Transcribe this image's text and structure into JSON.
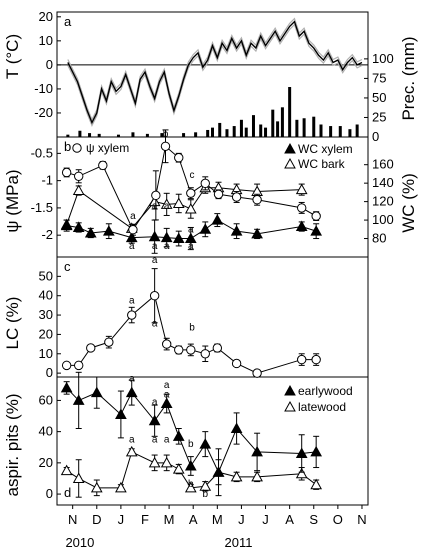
{
  "chart_data": [
    {
      "panel": "a",
      "type": "line",
      "ylabel": "T (°C)",
      "ylabel_right": "Prec. (mm)",
      "ylim": [
        -30,
        22
      ],
      "ylim_right": [
        0,
        160
      ],
      "yticks": [
        -20,
        -10,
        0,
        10,
        20
      ],
      "yticks_right": [
        0,
        25,
        50,
        75,
        100
      ],
      "zero_line": true,
      "series": [
        {
          "type": "line",
          "x": [
            0.3,
            0.5,
            0.7,
            0.9,
            1.1,
            1.3,
            1.5,
            1.7,
            1.9,
            2.1,
            2.3,
            2.5,
            2.7,
            2.9,
            3.1,
            3.3,
            3.5,
            3.7,
            3.9,
            4.1,
            4.3,
            4.5,
            4.7,
            4.9,
            5.1,
            5.3,
            5.5,
            5.7,
            5.9,
            6.1,
            6.3,
            6.5,
            6.7,
            6.9,
            7.1,
            7.3,
            7.5,
            7.7,
            7.9,
            8.1,
            8.3,
            8.5,
            8.7,
            8.9,
            9.1,
            9.3,
            9.5,
            9.7,
            9.9,
            10.1,
            10.3,
            10.5,
            10.7,
            10.9,
            11.1,
            11.3,
            11.5,
            11.7,
            11.9,
            12.1,
            12.3,
            12.5
          ],
          "y": [
            1,
            -3,
            -7,
            -13,
            -19,
            -24,
            -20,
            -10,
            -15,
            -7,
            -11,
            -9,
            -4,
            -10,
            -16,
            -6,
            -3,
            -9,
            -14,
            -7,
            -3,
            -12,
            -19,
            -13,
            -6,
            0,
            3,
            5,
            -1,
            2,
            8,
            3,
            9,
            6,
            11,
            7,
            10,
            4,
            9,
            7,
            12,
            8,
            11,
            14,
            10,
            13,
            16,
            18,
            12,
            14,
            9,
            7,
            4,
            2,
            5,
            1,
            2,
            -2,
            1,
            3,
            0,
            1
          ]
        },
        {
          "type": "bar",
          "name": "Prec.",
          "x": [
            0.3,
            0.8,
            1.2,
            1.6,
            2.4,
            3.0,
            3.6,
            4.2,
            5.1,
            5.6,
            6.1,
            6.3,
            6.6,
            6.9,
            7.2,
            7.5,
            7.7,
            8.0,
            8.3,
            8.5,
            8.8,
            9.0,
            9.2,
            9.5,
            9.8,
            10.1,
            10.5,
            10.8,
            11.2,
            11.6,
            12.0,
            12.3
          ],
          "y": [
            3,
            8,
            5,
            4,
            3,
            6,
            4,
            5,
            5,
            6,
            9,
            12,
            18,
            10,
            14,
            22,
            12,
            28,
            16,
            12,
            35,
            20,
            38,
            64,
            22,
            24,
            26,
            16,
            14,
            14,
            10,
            16
          ]
        }
      ]
    },
    {
      "panel": "b",
      "type": "line",
      "ylabel": "ψ (MPa)",
      "ylabel_right": "WC (%)",
      "ylim": [
        -2.4,
        -0.2
      ],
      "ylim_right": [
        60,
        190
      ],
      "yticks": [
        -2,
        -1.5,
        -1,
        -0.5
      ],
      "yticks_right": [
        80,
        100,
        120,
        140,
        160
      ],
      "legend": [
        "ψ xylem",
        "WC xylem",
        "WC bark"
      ],
      "series": [
        {
          "name": "ψ xylem",
          "x": [
            0.25,
            0.75,
            1.75,
            3,
            3.95,
            4.35,
            4.9,
            5.4,
            6,
            6.55,
            7.3,
            8.15,
            10,
            10.6
          ],
          "y": [
            -0.85,
            -0.92,
            -0.72,
            -1.9,
            -1.27,
            -0.37,
            -0.58,
            -1.23,
            -1.05,
            -1.25,
            -1.3,
            -1.35,
            -1.5,
            -1.65
          ],
          "err": [
            0.08,
            0.12,
            0.07,
            0.1,
            0.45,
            0.3,
            0.08,
            0.1,
            0.12,
            0.08,
            0.1,
            0.1,
            0.1,
            0.08
          ]
        },
        {
          "name": "WC xylem",
          "x": [
            0.25,
            0.75,
            1.25,
            2.0,
            2.95,
            3.9,
            4.4,
            4.9,
            5.4,
            6.0,
            6.5,
            7.3,
            8.15,
            10.0,
            10.6
          ],
          "y": [
            94,
            92,
            86,
            88,
            81,
            82,
            81,
            80,
            80,
            90,
            100,
            88,
            85,
            93,
            88
          ],
          "err": [
            6,
            5,
            5,
            8,
            6,
            18,
            10,
            8,
            12,
            8,
            7,
            8,
            5,
            5,
            8
          ]
        },
        {
          "name": "WC bark",
          "x": [
            0.25,
            0.75,
            2.95,
            3.9,
            4.4,
            4.9,
            5.4,
            6.0,
            6.55,
            7.3,
            8.15,
            10.0
          ],
          "y": [
            95,
            132,
            91,
            120,
            117,
            118,
            112,
            135,
            135,
            133,
            131,
            133
          ],
          "err": [
            5,
            5,
            4,
            8,
            12,
            10,
            10,
            6,
            6,
            6,
            8,
            6
          ]
        }
      ],
      "annotations": [
        {
          "x": 3.0,
          "y": -1.7,
          "text": "a"
        },
        {
          "x": 4.35,
          "y": -0.2,
          "text": "b"
        },
        {
          "x": 5.45,
          "y": -0.95,
          "text": "c"
        },
        {
          "x": 3.9,
          "y": -1.52,
          "text": "a"
        },
        {
          "x": 4.4,
          "y": -1.52,
          "text": "a"
        },
        {
          "x": 2.95,
          "y": -2.25,
          "text": "a"
        },
        {
          "x": 3.9,
          "y": -2.25,
          "text": "a"
        },
        {
          "x": 4.4,
          "y": -2.25,
          "text": "a"
        },
        {
          "x": 5.4,
          "y": -2.25,
          "text": "a"
        },
        {
          "x": 5.4,
          "y": -1.95,
          "text": "a"
        }
      ]
    },
    {
      "panel": "c",
      "type": "line",
      "ylabel": "LC (%)",
      "ylim": [
        -2,
        60
      ],
      "yticks": [
        0,
        10,
        20,
        30,
        40,
        50
      ],
      "series": [
        {
          "name": "LC",
          "x": [
            0.25,
            0.75,
            1.25,
            2.0,
            2.95,
            3.9,
            4.4,
            4.9,
            5.4,
            6.0,
            6.5,
            7.3,
            8.15,
            10.0,
            10.6
          ],
          "y": [
            4,
            4,
            13,
            16,
            30,
            40,
            15,
            12,
            12,
            10,
            13,
            5,
            0,
            7,
            7
          ],
          "err": [
            1,
            1,
            1,
            3,
            4,
            14,
            3,
            2,
            3,
            4,
            2,
            1,
            1,
            3,
            3
          ]
        }
      ],
      "annotations": [
        {
          "x": 2.95,
          "y": 36,
          "text": "a"
        },
        {
          "x": 3.9,
          "y": 57,
          "text": "a"
        },
        {
          "x": 3.9,
          "y": 24,
          "text": "a"
        },
        {
          "x": 5.45,
          "y": 22,
          "text": "b"
        }
      ]
    },
    {
      "panel": "d",
      "type": "line",
      "ylabel": "aspir. pits (%)",
      "ylim": [
        -7,
        75
      ],
      "yticks": [
        0,
        20,
        40,
        60
      ],
      "legend": [
        "earlywood",
        "latewood"
      ],
      "series": [
        {
          "name": "earlywood",
          "x": [
            0.25,
            0.75,
            1.5,
            2.5,
            2.95,
            3.9,
            4.4,
            4.9,
            5.4,
            6.0,
            6.55,
            7.3,
            8.15,
            10.0,
            10.6
          ],
          "y": [
            68,
            60,
            65,
            51,
            65,
            47,
            58,
            37,
            18,
            32,
            14,
            42,
            27,
            26,
            27
          ],
          "err": [
            4,
            18,
            10,
            15,
            8,
            10,
            6,
            5,
            6,
            8,
            15,
            10,
            12,
            12,
            10
          ]
        },
        {
          "name": "latewood",
          "x": [
            0.25,
            0.75,
            1.5,
            2.5,
            2.95,
            3.9,
            4.4,
            4.9,
            5.4,
            6.0,
            6.55,
            7.3,
            8.15,
            10.0,
            10.6
          ],
          "y": [
            15,
            10,
            4,
            4,
            27,
            20,
            20,
            16,
            4,
            5,
            14,
            11,
            11,
            13,
            6
          ],
          "err": [
            2,
            12,
            5,
            2,
            2,
            5,
            5,
            3,
            2,
            3,
            8,
            3,
            3,
            4,
            3
          ]
        }
      ],
      "annotations": [
        {
          "x": 2.95,
          "y": 72,
          "text": "a"
        },
        {
          "x": 3.9,
          "y": 57,
          "text": "a"
        },
        {
          "x": 4.4,
          "y": 68,
          "text": "a"
        },
        {
          "x": 4.4,
          "y": 62,
          "text": "a"
        },
        {
          "x": 2.95,
          "y": 33,
          "text": "a"
        },
        {
          "x": 3.9,
          "y": 33,
          "text": "a"
        },
        {
          "x": 4.4,
          "y": 33,
          "text": "a"
        },
        {
          "x": 5.4,
          "y": 30,
          "text": "b"
        },
        {
          "x": 5.4,
          "y": 4.5,
          "text": "b"
        },
        {
          "x": 6.0,
          "y": -2,
          "text": "b"
        }
      ]
    }
  ],
  "x_axis": {
    "tick_labels": [
      "N",
      "D",
      "J",
      "F",
      "M",
      "A",
      "M",
      "J",
      "J",
      "A",
      "S",
      "O",
      "N"
    ],
    "year_labels": [
      {
        "x": 0.2,
        "text": "2010"
      },
      {
        "x": 6.8,
        "text": "2011"
      }
    ]
  },
  "panel_labels": [
    "a",
    "b",
    "c",
    "d"
  ]
}
